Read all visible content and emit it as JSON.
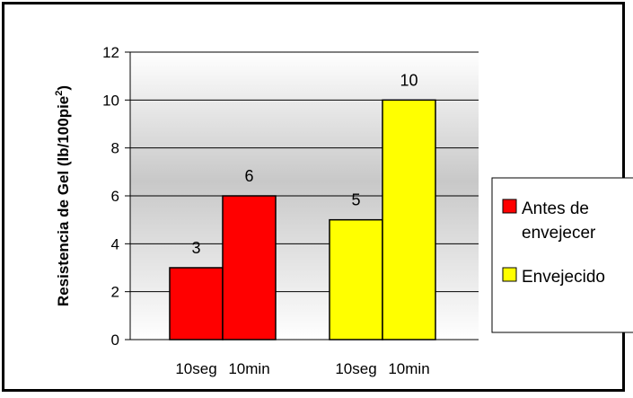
{
  "chart_data": {
    "type": "bar",
    "ylabel": "Resistencia de Gel (lb/100pie²)",
    "ylabel_main": "Resistencia de Gel (lb/100pie",
    "ylabel_sup": "2",
    "ylabel_tail": ")",
    "ylim": [
      0,
      12
    ],
    "yticks": [
      "0",
      "2",
      "4",
      "6",
      "8",
      "10",
      "12"
    ],
    "grid": true,
    "legend_position": "right",
    "groups": [
      {
        "series_index": 0,
        "bars": [
          {
            "category": "10seg",
            "value": 3,
            "label": "3"
          },
          {
            "category": "10min",
            "value": 6,
            "label": "6"
          }
        ]
      },
      {
        "series_index": 1,
        "bars": [
          {
            "category": "10seg",
            "value": 5,
            "label": "5"
          },
          {
            "category": "10min",
            "value": 10,
            "label": "10"
          }
        ]
      }
    ],
    "series": [
      {
        "name_lines": [
          "Antes de",
          "envejecer"
        ],
        "name": "Antes de envejecer",
        "color": "#ff0000"
      },
      {
        "name_lines": [
          "Envejecido"
        ],
        "name": "Envejecido",
        "color": "#ffff00"
      }
    ]
  }
}
